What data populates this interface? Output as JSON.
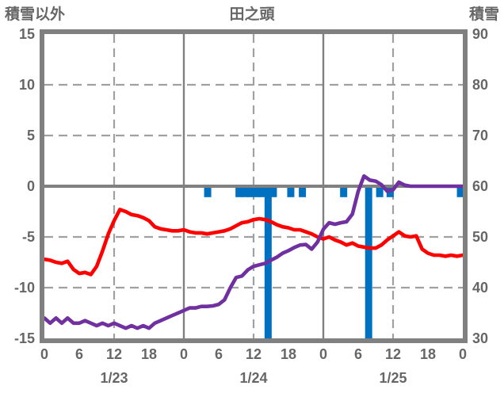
{
  "header": {
    "left_axis_title": "積雪以外",
    "station_title": "田之頭",
    "right_axis_title": "積雪"
  },
  "colors": {
    "temperature_line": "#ff0000",
    "snow_depth_line": "#7030a0",
    "snowfall_bars": "#0070c0",
    "frame": "#808080",
    "gridline": "#a0a0a0",
    "label_text": "#666666"
  },
  "chart_data": {
    "type": "line",
    "title": "田之頭",
    "x_unit": "hours from 1/23 00:00",
    "x_range_hours": [
      0,
      72
    ],
    "x_tick_step_hours": 6,
    "x_tick_labels": [
      "0",
      "6",
      "12",
      "18",
      "0",
      "6",
      "12",
      "18",
      "0",
      "6",
      "12",
      "18",
      "0"
    ],
    "date_labels": [
      {
        "label": "1/23",
        "hour": 12
      },
      {
        "label": "1/24",
        "hour": 36
      },
      {
        "label": "1/25",
        "hour": 60
      }
    ],
    "left_axis": {
      "title": "積雪以外",
      "min": -15,
      "max": 15,
      "ticks": [
        "15",
        "10",
        "5",
        "0",
        "-5",
        "-10",
        "-15"
      ],
      "tick_values": [
        15,
        10,
        5,
        0,
        -5,
        -10,
        -15
      ]
    },
    "right_axis": {
      "title": "積雪",
      "min": 30,
      "max": 90,
      "ticks": [
        "90",
        "80",
        "70",
        "60",
        "50",
        "40",
        "30"
      ],
      "tick_values": [
        90,
        80,
        70,
        60,
        50,
        40,
        30
      ]
    },
    "gridlines": {
      "horizontal_dashed_left_values": [
        10,
        5,
        -5,
        -10
      ],
      "horizontal_solid_left_values": [
        0
      ],
      "vertical_dashed_hours": [
        12,
        36,
        60
      ],
      "vertical_solid_hours": [
        24,
        48
      ]
    },
    "series": [
      {
        "name": "red_line",
        "type": "line",
        "axis": "left",
        "color": "#ff0000",
        "start_hour": 0,
        "step_hours": 1,
        "values": [
          -7.2,
          -7.3,
          -7.5,
          -7.6,
          -7.4,
          -8.2,
          -8.6,
          -8.5,
          -8.7,
          -7.9,
          -6.4,
          -4.7,
          -3.4,
          -2.3,
          -2.5,
          -2.8,
          -2.9,
          -3.1,
          -3.4,
          -4.0,
          -4.2,
          -4.3,
          -4.4,
          -4.4,
          -4.3,
          -4.5,
          -4.6,
          -4.6,
          -4.7,
          -4.6,
          -4.5,
          -4.4,
          -4.2,
          -3.9,
          -3.6,
          -3.5,
          -3.3,
          -3.2,
          -3.3,
          -3.5,
          -3.8,
          -4.0,
          -4.1,
          -4.3,
          -4.3,
          -4.5,
          -4.7,
          -5.0,
          -5.2,
          -5.0,
          -5.3,
          -5.5,
          -5.8,
          -5.6,
          -5.9,
          -6.0,
          -6.1,
          -6.1,
          -5.8,
          -5.3,
          -4.9,
          -4.5,
          -4.9,
          -5.0,
          -4.9,
          -6.2,
          -6.6,
          -6.8,
          -6.8,
          -6.9,
          -6.8,
          -6.9,
          -6.8
        ]
      },
      {
        "name": "purple_line",
        "type": "line",
        "axis": "right",
        "color": "#7030a0",
        "start_hour": 0,
        "step_hours": 1,
        "values": [
          34,
          33,
          34,
          33,
          34,
          33,
          33,
          33.5,
          33,
          32.5,
          33,
          32.5,
          33,
          32.5,
          32,
          32.5,
          32,
          32.5,
          32,
          33,
          33.5,
          34,
          34.5,
          35,
          35.5,
          36,
          36,
          36.3,
          36.3,
          36.4,
          36.7,
          37.6,
          40,
          42,
          42.3,
          43.5,
          44.2,
          44.5,
          44.8,
          45.4,
          46,
          46.8,
          47.3,
          47.9,
          48.4,
          48.5,
          47.6,
          49,
          51.5,
          52.8,
          52.5,
          52.8,
          53,
          54.5,
          59,
          62,
          61.2,
          61,
          60.3,
          59,
          59.3,
          60.8,
          60.2,
          60,
          60,
          60,
          60,
          60,
          60,
          60,
          60,
          60,
          60
        ]
      },
      {
        "name": "blue_bars",
        "type": "bar",
        "axis": "left",
        "color": "#0070c0",
        "direction": "down_from_zero",
        "bars": [
          {
            "hour": 28.1,
            "depth": 1
          },
          {
            "hour": 33.5,
            "depth": 1
          },
          {
            "hour": 34.5,
            "depth": 1
          },
          {
            "hour": 35.5,
            "depth": 1
          },
          {
            "hour": 36.5,
            "depth": 1
          },
          {
            "hour": 37.5,
            "depth": 1
          },
          {
            "hour": 38.5,
            "depth": 15
          },
          {
            "hour": 39.4,
            "depth": 1
          },
          {
            "hour": 42.4,
            "depth": 1
          },
          {
            "hour": 44.4,
            "depth": 1
          },
          {
            "hour": 51.5,
            "depth": 1
          },
          {
            "hour": 55.8,
            "depth": 15
          },
          {
            "hour": 57.7,
            "depth": 1
          },
          {
            "hour": 59.5,
            "depth": 1
          },
          {
            "hour": 71.6,
            "depth": 1
          }
        ]
      }
    ]
  }
}
